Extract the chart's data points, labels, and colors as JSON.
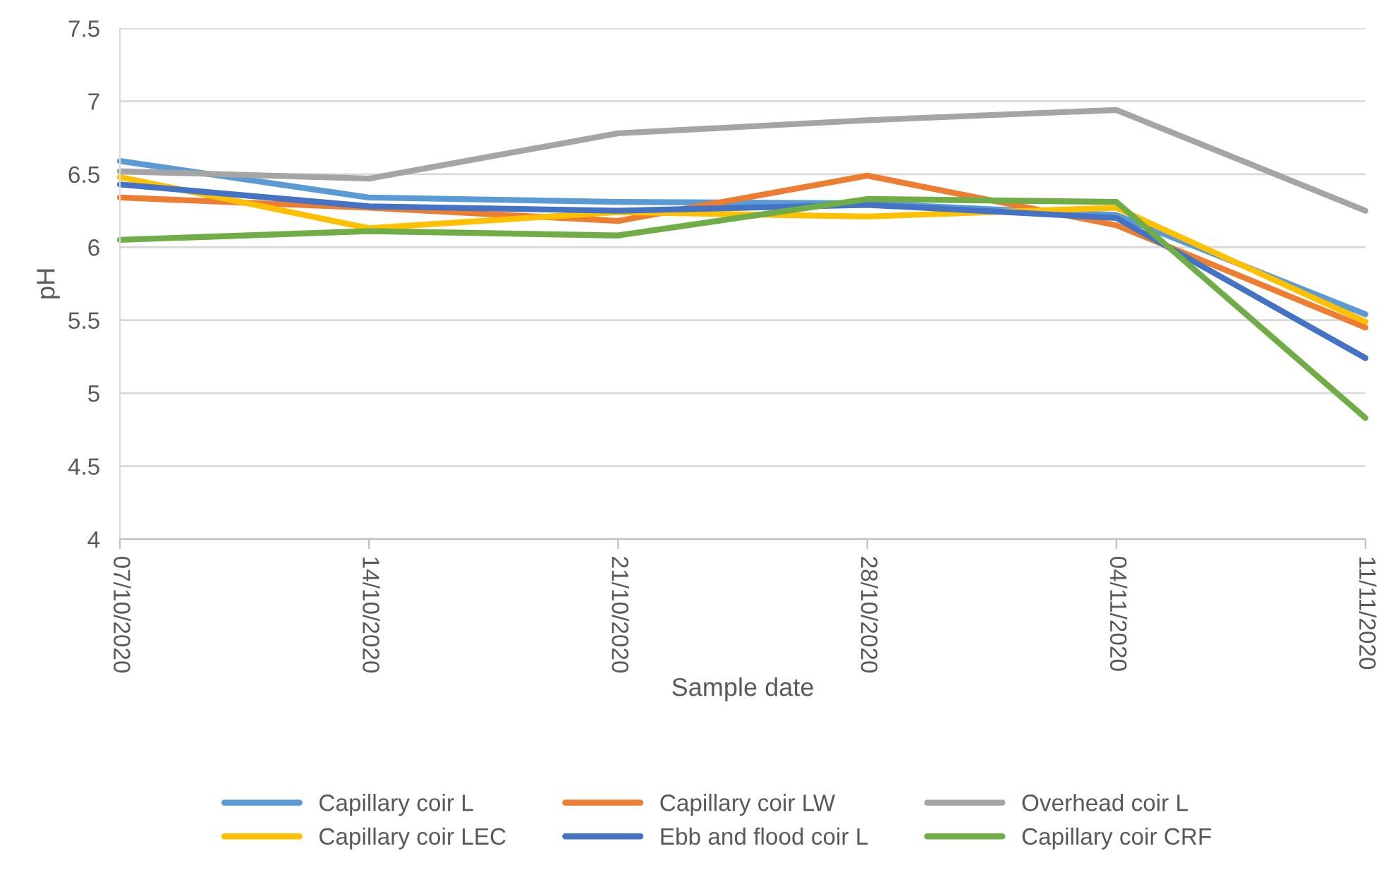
{
  "chart_data": {
    "type": "line",
    "xlabel": "Sample date",
    "ylabel": "pH",
    "categories": [
      "07/10/2020",
      "14/10/2020",
      "21/10/2020",
      "28/10/2020",
      "04/11/2020",
      "11/11/2020"
    ],
    "series": [
      {
        "name": "Capillary coir L",
        "color": "#5b9bd5",
        "values": [
          6.59,
          6.34,
          6.31,
          6.3,
          6.22,
          5.54
        ]
      },
      {
        "name": "Capillary coir LW",
        "color": "#ed7d31",
        "values": [
          6.34,
          6.27,
          6.18,
          6.49,
          6.15,
          5.45
        ]
      },
      {
        "name": "Overhead coir L",
        "color": "#a5a5a5",
        "values": [
          6.52,
          6.47,
          6.78,
          6.87,
          6.94,
          6.25
        ]
      },
      {
        "name": "Capillary coir LEC",
        "color": "#ffc000",
        "values": [
          6.48,
          6.13,
          6.24,
          6.21,
          6.27,
          5.49
        ]
      },
      {
        "name": "Ebb and flood coir L",
        "color": "#4472c4",
        "values": [
          6.43,
          6.28,
          6.25,
          6.29,
          6.2,
          5.24
        ]
      },
      {
        "name": "Capillary coir CRF",
        "color": "#70ad47",
        "values": [
          6.05,
          6.11,
          6.08,
          6.33,
          6.31,
          4.83
        ]
      }
    ],
    "ylim": [
      4,
      7.5
    ],
    "yticks": [
      4,
      4.5,
      5,
      5.5,
      6,
      6.5,
      7,
      7.5
    ],
    "grid": "y",
    "legend": "bottom",
    "marker": "none",
    "line_style": "solid"
  }
}
